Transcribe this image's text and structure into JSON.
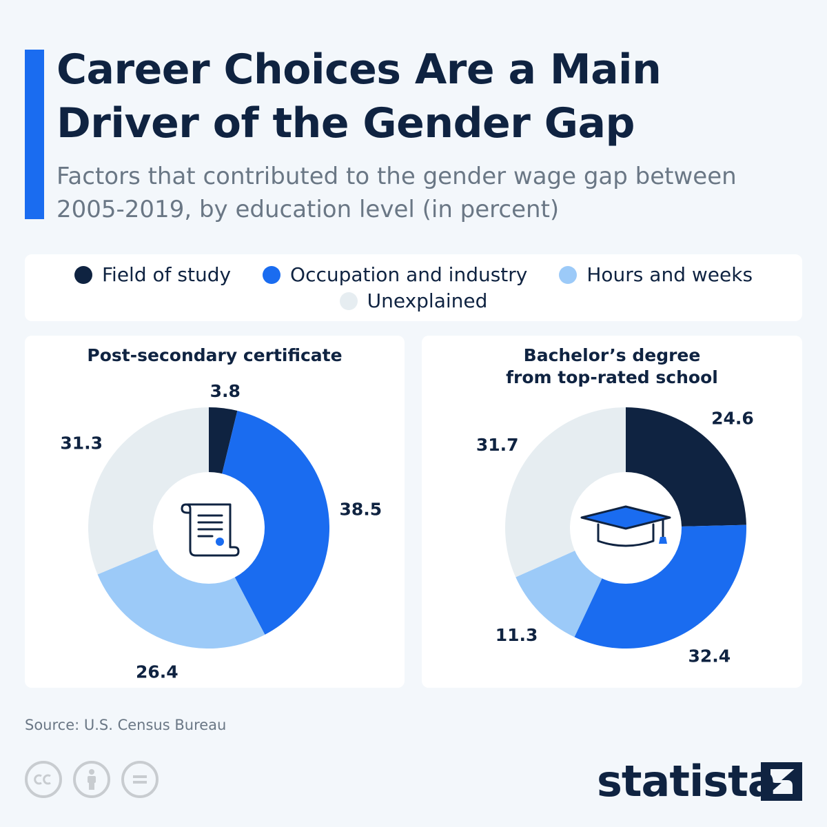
{
  "header": {
    "title": "Career Choices Are a Main Driver of the Gender Gap",
    "subtitle": "Factors that contributed to the gender wage gap between 2005-2019, by education level (in percent)"
  },
  "legend": [
    {
      "label": "Field of study",
      "color": "#0f2341"
    },
    {
      "label": "Occupation and industry",
      "color": "#1a6cf0"
    },
    {
      "label": "Hours and weeks",
      "color": "#9ccaf8"
    },
    {
      "label": "Unexplained",
      "color": "#e6edf1"
    }
  ],
  "chart_data": [
    {
      "type": "pie",
      "title": "Post-secondary certificate",
      "icon": "certificate-scroll-icon",
      "categories": [
        "Field of study",
        "Occupation and industry",
        "Hours and weeks",
        "Unexplained"
      ],
      "values": [
        3.8,
        38.5,
        26.4,
        31.3
      ],
      "labels": [
        "3.8",
        "38.5",
        "26.4",
        "31.3"
      ]
    },
    {
      "type": "pie",
      "title": "Bachelor’s degree from top-rated school",
      "title_lines": [
        "Bachelor’s degree",
        "from top-rated school"
      ],
      "icon": "graduation-cap-icon",
      "categories": [
        "Field of study",
        "Occupation and industry",
        "Hours and weeks",
        "Unexplained"
      ],
      "values": [
        24.6,
        32.4,
        11.3,
        31.7
      ],
      "labels": [
        "24.6",
        "32.4",
        "11.3",
        "31.7"
      ]
    }
  ],
  "footer": {
    "source": "Source: U.S. Census Bureau",
    "brand": "statista",
    "license_icons": [
      "cc-icon",
      "attribution-icon",
      "no-derivatives-icon"
    ]
  }
}
